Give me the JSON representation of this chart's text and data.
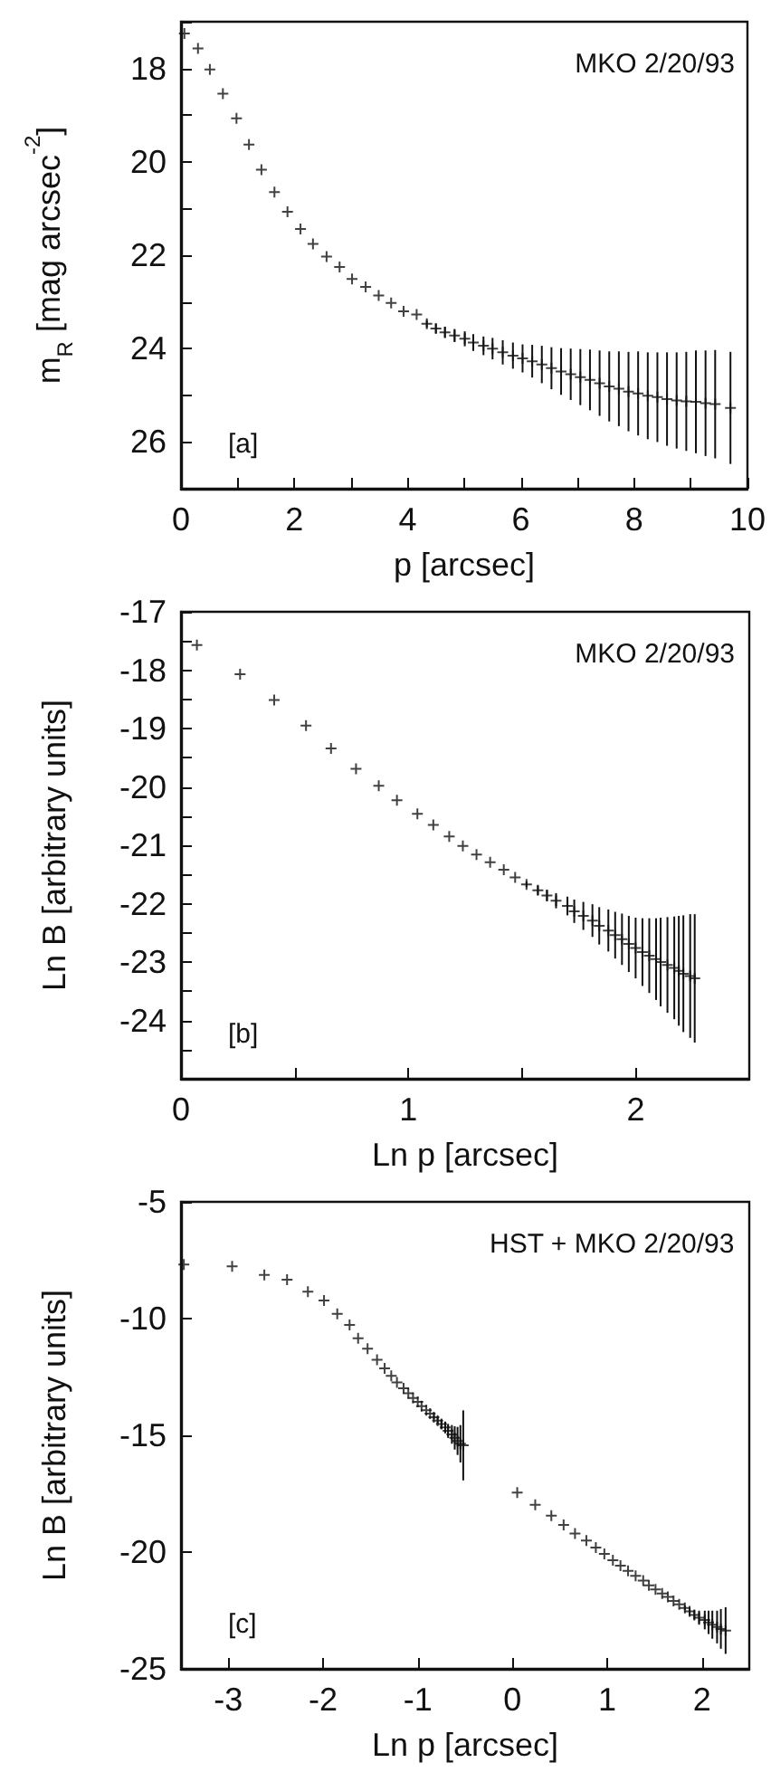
{
  "chart_data": [
    {
      "type": "scatter",
      "xlabel": "p [arcsec]",
      "ylabel": "m$_{R}$ [mag arcsec$^{-2}$]",
      "annotations": [
        "MKO 2/20/93",
        "[a]"
      ],
      "marker": "cross",
      "grid": false,
      "xlim": [
        0,
        10
      ],
      "xticks": [
        0,
        {
          "value": 1,
          "label": null
        },
        2,
        {
          "value": 3,
          "label": null
        },
        4,
        {
          "value": 5,
          "label": null
        },
        6,
        {
          "value": 7,
          "label": null
        },
        8,
        {
          "value": 9,
          "label": null
        },
        10
      ],
      "ylim": [
        27,
        17
      ],
      "yticks": [
        {
          "value": 17,
          "label": null
        },
        18,
        {
          "value": 19,
          "label": null
        },
        20,
        {
          "value": 21,
          "label": null
        },
        22,
        {
          "value": 23,
          "label": null
        },
        24,
        {
          "value": 25,
          "label": null
        },
        26,
        {
          "value": 27,
          "label": null
        }
      ],
      "series": [
        {
          "color": "#111111",
          "x": [
            0.06,
            0.3,
            0.51,
            0.74,
            0.98,
            1.2,
            1.42,
            1.65,
            1.88,
            2.11,
            2.33,
            2.57,
            2.8,
            3.02,
            3.26,
            3.49,
            3.71,
            3.93,
            4.16,
            4.34,
            4.5,
            4.66,
            4.83,
            5.01,
            5.16,
            5.34,
            5.5,
            5.68,
            5.86,
            6.03,
            6.2,
            6.37,
            6.54,
            6.71,
            6.88,
            7.05,
            7.22,
            7.39,
            7.56,
            7.73,
            7.9,
            8.07,
            8.24,
            8.41,
            8.58,
            8.75,
            8.92,
            9.09,
            9.26,
            9.43,
            9.7
          ],
          "values": [
            17.25,
            17.57,
            18.02,
            18.54,
            19.07,
            19.63,
            20.17,
            20.65,
            21.07,
            21.44,
            21.76,
            22.03,
            22.25,
            22.51,
            22.68,
            22.86,
            23.02,
            23.2,
            23.27,
            23.47,
            23.57,
            23.65,
            23.72,
            23.79,
            23.87,
            23.94,
            24.0,
            24.08,
            24.15,
            24.21,
            24.27,
            24.34,
            24.42,
            24.49,
            24.55,
            24.61,
            24.67,
            24.74,
            24.81,
            24.86,
            24.92,
            24.96,
            25.01,
            25.04,
            25.08,
            25.11,
            25.13,
            25.14,
            25.17,
            25.19,
            25.27
          ],
          "errors": [
            null,
            null,
            null,
            null,
            null,
            null,
            null,
            null,
            null,
            null,
            null,
            null,
            null,
            null,
            null,
            null,
            null,
            null,
            null,
            0.08,
            0.1,
            0.12,
            0.14,
            0.16,
            0.18,
            0.2,
            0.23,
            0.26,
            0.28,
            0.3,
            0.35,
            0.4,
            0.45,
            0.5,
            0.55,
            0.6,
            0.65,
            0.7,
            0.75,
            0.8,
            0.85,
            0.9,
            0.93,
            0.96,
            1.0,
            1.03,
            1.06,
            1.1,
            1.13,
            1.16,
            1.2
          ]
        }
      ]
    },
    {
      "type": "scatter",
      "xlabel": "Ln p [arcsec]",
      "ylabel": "Ln B [arbitrary units]",
      "annotations": [
        "MKO 2/20/93",
        "[b]"
      ],
      "marker": "cross",
      "grid": false,
      "xlim": [
        0,
        2.5
      ],
      "xticks": [
        0,
        {
          "value": 0.5,
          "label": null
        },
        1,
        {
          "value": 1.5,
          "label": null
        },
        2
      ],
      "ylim": [
        -25,
        -17
      ],
      "yticks": [
        {
          "value": -24.5,
          "label": null
        },
        -24,
        {
          "value": -23.5,
          "label": null
        },
        -23,
        {
          "value": -22.5,
          "label": null
        },
        -22,
        {
          "value": -21.5,
          "label": null
        },
        -21,
        {
          "value": -20.5,
          "label": null
        },
        -20,
        {
          "value": -19.5,
          "label": null
        },
        -19,
        {
          "value": -18.5,
          "label": null
        },
        -18,
        {
          "value": -17.5,
          "label": null
        },
        -17
      ],
      "series": [
        {
          "color": "#111111",
          "x": [
            0.07,
            0.26,
            0.41,
            0.55,
            0.66,
            0.77,
            0.87,
            0.95,
            1.04,
            1.11,
            1.18,
            1.24,
            1.3,
            1.36,
            1.42,
            1.47,
            1.52,
            1.57,
            1.61,
            1.65,
            1.7,
            1.73,
            1.77,
            1.81,
            1.84,
            1.88,
            1.91,
            1.94,
            1.97,
            2.0,
            2.03,
            2.06,
            2.09,
            2.11,
            2.14,
            2.17,
            2.19,
            2.21,
            2.24,
            2.26
          ],
          "values": [
            -17.57,
            -18.07,
            -18.51,
            -18.95,
            -19.34,
            -19.69,
            -19.98,
            -20.23,
            -20.46,
            -20.65,
            -20.85,
            -21.01,
            -21.16,
            -21.29,
            -21.42,
            -21.55,
            -21.67,
            -21.77,
            -21.86,
            -21.95,
            -22.04,
            -22.13,
            -22.21,
            -22.29,
            -22.38,
            -22.46,
            -22.54,
            -22.61,
            -22.69,
            -22.76,
            -22.83,
            -22.89,
            -22.95,
            -23.0,
            -23.05,
            -23.1,
            -23.15,
            -23.2,
            -23.24,
            -23.28
          ],
          "errors": [
            null,
            null,
            null,
            null,
            null,
            null,
            null,
            null,
            null,
            null,
            null,
            null,
            null,
            null,
            null,
            null,
            0.05,
            0.08,
            0.1,
            0.13,
            0.16,
            0.2,
            0.24,
            0.28,
            0.32,
            0.36,
            0.4,
            0.44,
            0.48,
            0.52,
            0.58,
            0.64,
            0.7,
            0.76,
            0.82,
            0.88,
            0.94,
            1.0,
            1.06,
            1.1
          ]
        }
      ]
    },
    {
      "type": "scatter",
      "xlabel": "Ln p [arcsec]",
      "ylabel": "Ln B [arbitrary units]",
      "annotations": [
        "HST + MKO 2/20/93",
        "[c]"
      ],
      "marker": "cross",
      "grid": false,
      "xlim": [
        -3.5,
        2.5
      ],
      "xticks": [
        -3,
        -2,
        -1,
        0,
        1,
        2
      ],
      "ylim": [
        -25,
        -5
      ],
      "yticks": [
        -25,
        -20,
        -15,
        -10,
        -5
      ],
      "series": [
        {
          "color": "#111111",
          "x": [
            -3.47,
            -2.96,
            -2.62,
            -2.38,
            -2.16,
            -1.99,
            -1.85,
            -1.72,
            -1.63,
            -1.53,
            -1.43,
            -1.35,
            -1.28,
            -1.22,
            -1.15,
            -1.1,
            -1.05,
            -1.0,
            -0.96,
            -0.91,
            -0.87,
            -0.83,
            -0.79,
            -0.75,
            -0.71,
            -0.68,
            -0.64,
            -0.61,
            -0.58,
            -0.55,
            -0.52,
            0.05,
            0.24,
            0.41,
            0.54,
            0.66,
            0.78,
            0.88,
            0.97,
            1.06,
            1.14,
            1.22,
            1.3,
            1.38,
            1.44,
            1.51,
            1.58,
            1.64,
            1.7,
            1.76,
            1.82,
            1.87,
            1.92,
            1.97,
            2.03,
            2.07,
            2.11,
            2.16,
            2.2,
            2.25
          ],
          "values": [
            -7.68,
            -7.76,
            -8.13,
            -8.33,
            -8.85,
            -9.22,
            -9.8,
            -10.27,
            -10.84,
            -11.29,
            -11.76,
            -12.13,
            -12.45,
            -12.73,
            -12.98,
            -13.2,
            -13.4,
            -13.57,
            -13.75,
            -13.92,
            -14.07,
            -14.22,
            -14.37,
            -14.52,
            -14.66,
            -14.81,
            -14.96,
            -15.11,
            -15.24,
            -15.36,
            -15.43,
            -17.45,
            -17.97,
            -18.44,
            -18.84,
            -19.21,
            -19.51,
            -19.81,
            -20.08,
            -20.35,
            -20.58,
            -20.8,
            -21.02,
            -21.22,
            -21.42,
            -21.6,
            -21.77,
            -21.92,
            -22.09,
            -22.24,
            -22.39,
            -22.54,
            -22.69,
            -22.81,
            -22.91,
            -23.01,
            -23.11,
            -23.21,
            -23.29,
            -23.36
          ],
          "errors": [
            null,
            null,
            null,
            null,
            null,
            null,
            null,
            null,
            null,
            null,
            null,
            null,
            null,
            null,
            null,
            null,
            null,
            null,
            null,
            null,
            null,
            0.1,
            0.15,
            0.2,
            0.25,
            0.3,
            0.4,
            0.5,
            0.6,
            0.8,
            1.5,
            null,
            null,
            null,
            null,
            null,
            null,
            null,
            null,
            null,
            null,
            null,
            null,
            null,
            null,
            null,
            null,
            null,
            null,
            null,
            0.1,
            0.15,
            0.2,
            0.3,
            0.4,
            0.5,
            0.6,
            0.7,
            0.85,
            1.0
          ]
        }
      ]
    }
  ]
}
